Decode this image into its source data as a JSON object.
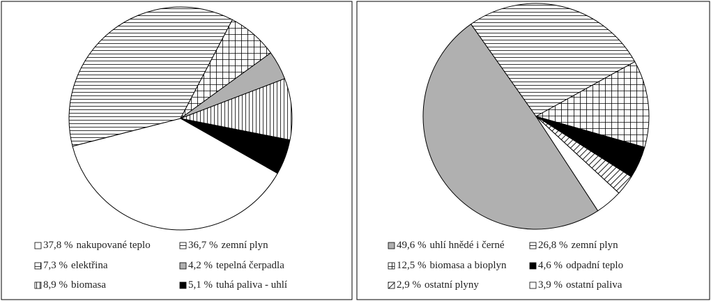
{
  "chart_data": [
    {
      "type": "pie",
      "categories": [
        "nakupované teplo",
        "zemní plyn",
        "elektřina",
        "tepelná čerpadla",
        "biomasa",
        "tuhá paliva - uhlí"
      ],
      "values": [
        37.8,
        36.7,
        7.3,
        4.2,
        8.9,
        5.1
      ],
      "value_labels": [
        "37,8 %",
        "36,7 %",
        "7,3 %",
        "4,2 %",
        "8,9 %",
        "5,1 %"
      ],
      "fills": [
        "white",
        "hlines",
        "crosshatch",
        "gray",
        "vlines",
        "black"
      ]
    },
    {
      "type": "pie",
      "categories": [
        "uhlí hnědé i černé",
        "zemní plyn",
        "biomasa a bioplyn",
        "odpadní teplo",
        "ostatní plyny",
        "ostatní paliva"
      ],
      "values": [
        49.6,
        26.8,
        12.5,
        4.6,
        2.9,
        3.9
      ],
      "value_labels": [
        "49,6 %",
        "26,8 %",
        "12,5 %",
        "4,6 %",
        "2,9 %",
        "3,9 %"
      ],
      "fills": [
        "gray",
        "hlines",
        "crosshatch",
        "black",
        "diagonal",
        "white"
      ]
    }
  ]
}
